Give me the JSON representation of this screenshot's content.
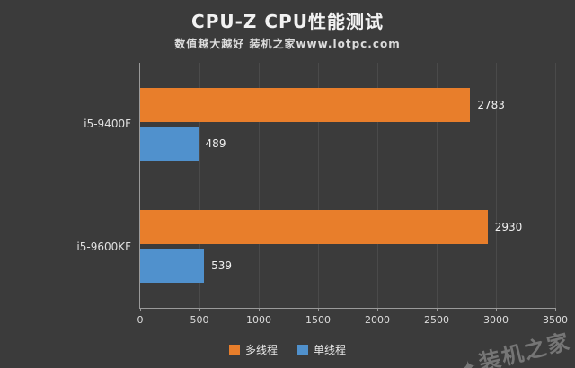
{
  "header": {
    "title": "CPU-Z CPU性能测试",
    "subtitle": "数值越大越好 装机之家www.lotpc.com"
  },
  "colors": {
    "background": "#3b3b3b",
    "multi_thread": "#e87e2b",
    "single_thread": "#5091cd",
    "grid": "#4a4a4a",
    "axis": "#9a9a9a",
    "text": "#eaeaea"
  },
  "chart_data": {
    "type": "bar",
    "orientation": "horizontal",
    "title": "CPU-Z CPU性能测试",
    "subtitle": "数值越大越好 装机之家www.lotpc.com",
    "categories": [
      "i5-9400F",
      "i5-9600KF"
    ],
    "series": [
      {
        "name": "多线程",
        "color": "#e87e2b",
        "values": [
          2783,
          2930
        ]
      },
      {
        "name": "单线程",
        "color": "#5091cd",
        "values": [
          489,
          539
        ]
      }
    ],
    "xlim": [
      0,
      3500
    ],
    "xticks": [
      0,
      500,
      1000,
      1500,
      2000,
      2500,
      3000,
      3500
    ],
    "grid": true,
    "legend_position": "bottom"
  },
  "watermark": {
    "burst": "✦",
    "text": "装机之家"
  }
}
